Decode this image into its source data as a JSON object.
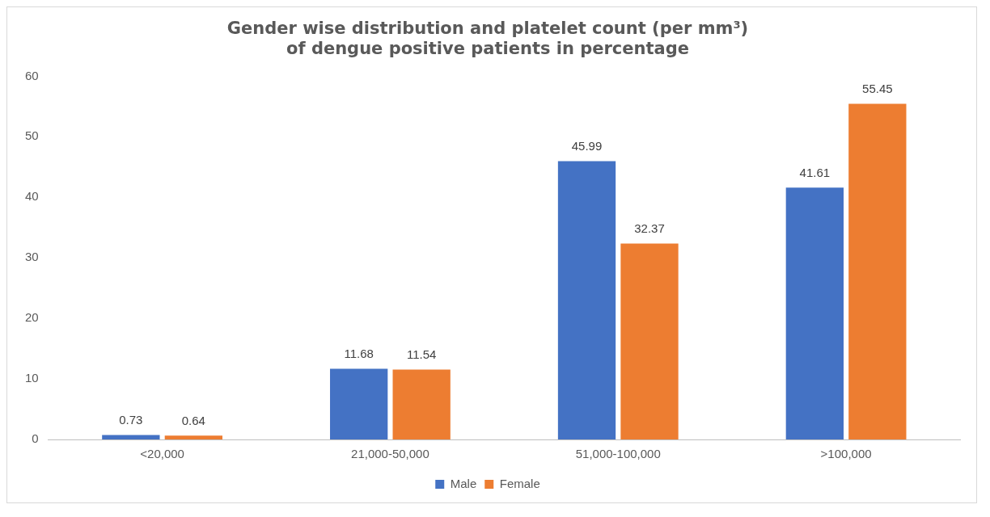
{
  "chart_data": {
    "type": "bar",
    "title": [
      "Gender wise distribution and platelet count (per mm³)",
      "of dengue positive patients in percentage"
    ],
    "categories": [
      "<20,000",
      "21,000-50,000",
      "51,000-100,000",
      ">100,000"
    ],
    "series": [
      {
        "name": "Male",
        "color": "#4472c4",
        "values": [
          0.73,
          11.68,
          45.99,
          41.61
        ]
      },
      {
        "name": "Female",
        "color": "#ed7d31",
        "values": [
          0.64,
          11.54,
          32.37,
          55.45
        ]
      }
    ],
    "ylim": [
      0,
      60
    ],
    "yticks": [
      0,
      10,
      20,
      30,
      40,
      50,
      60
    ],
    "grid": false,
    "legend": "bottom",
    "data_labels": true
  }
}
